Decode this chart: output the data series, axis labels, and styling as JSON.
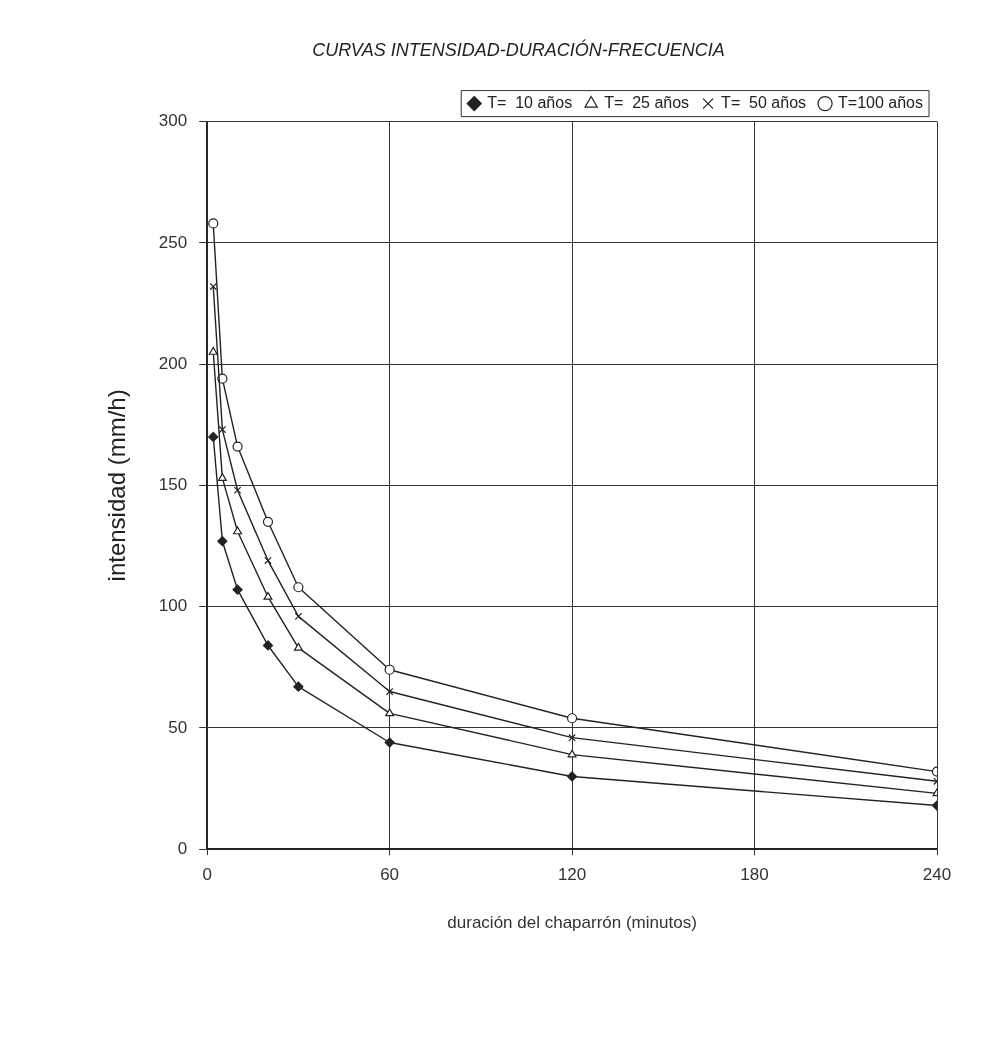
{
  "chart_data": {
    "type": "line",
    "title": "CURVAS INTENSIDAD-DURACIÓN-FRECUENCIA",
    "xlabel": "duración del chaparrón (minutos)",
    "ylabel": "intensidad (mm/h)",
    "x": [
      2,
      5,
      10,
      20,
      30,
      60,
      120,
      240
    ],
    "series": [
      {
        "name": "T=  10 años",
        "color": "#222222",
        "marker": "diamond",
        "values": [
          170,
          127,
          107,
          84,
          67,
          44,
          30,
          18
        ]
      },
      {
        "name": "T=  25 años",
        "color": "#222222",
        "marker": "triangle",
        "values": [
          205,
          153,
          131,
          104,
          83,
          56,
          39,
          23
        ]
      },
      {
        "name": "T=  50 años",
        "color": "#222222",
        "marker": "cross",
        "values": [
          232,
          173,
          148,
          119,
          96,
          65,
          46,
          28
        ]
      },
      {
        "name": "T=100 años",
        "color": "#222222",
        "marker": "circle",
        "values": [
          258,
          194,
          166,
          135,
          108,
          74,
          54,
          32
        ]
      }
    ],
    "xlim": [
      0,
      240
    ],
    "xticks": [
      0,
      60,
      120,
      180,
      240
    ],
    "ylim": [
      0,
      300
    ],
    "yticks": [
      0,
      50,
      100,
      150,
      200,
      250,
      300
    ],
    "grid": true,
    "legend": "top right",
    "line_style": "solid"
  }
}
